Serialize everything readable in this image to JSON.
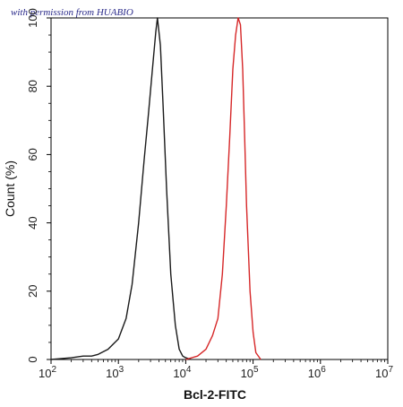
{
  "watermark": "with permission from HUABIO",
  "chart_data": {
    "type": "line",
    "title": "",
    "xlabel": "Bcl-2-FITC",
    "ylabel": "Count (%)",
    "x_scale": "log",
    "xlim": [
      100,
      10000000
    ],
    "ylim": [
      0,
      100
    ],
    "x_ticks": [
      {
        "value": 100,
        "base": "10",
        "exp": "2"
      },
      {
        "value": 1000,
        "base": "10",
        "exp": "3"
      },
      {
        "value": 10000,
        "base": "10",
        "exp": "4"
      },
      {
        "value": 100000,
        "base": "10",
        "exp": "5"
      },
      {
        "value": 1000000,
        "base": "10",
        "exp": "6"
      },
      {
        "value": 10000000,
        "base": "10",
        "exp": "7"
      }
    ],
    "y_ticks": [
      0,
      20,
      40,
      60,
      80,
      100
    ],
    "series": [
      {
        "color": "#1a1a1a",
        "x": [
          100,
          200,
          300,
          400,
          500,
          700,
          1000,
          1300,
          1600,
          2000,
          2400,
          2800,
          3200,
          3600,
          3800,
          4200,
          4600,
          5200,
          6000,
          7000,
          8000,
          9000,
          10000,
          12000
        ],
        "y": [
          0,
          0.5,
          1,
          1,
          1.5,
          3,
          6,
          12,
          22,
          40,
          58,
          72,
          85,
          96,
          100,
          92,
          75,
          50,
          25,
          10,
          3,
          1,
          0.5,
          0
        ]
      },
      {
        "color": "#d62728",
        "x": [
          10000,
          15000,
          20000,
          25000,
          30000,
          35000,
          40000,
          45000,
          50000,
          55000,
          60000,
          65000,
          70000,
          75000,
          80000,
          90000,
          100000,
          110000,
          130000
        ],
        "y": [
          0,
          1,
          3,
          7,
          12,
          25,
          45,
          65,
          85,
          95,
          100,
          98,
          85,
          65,
          45,
          20,
          8,
          2,
          0
        ]
      }
    ]
  }
}
